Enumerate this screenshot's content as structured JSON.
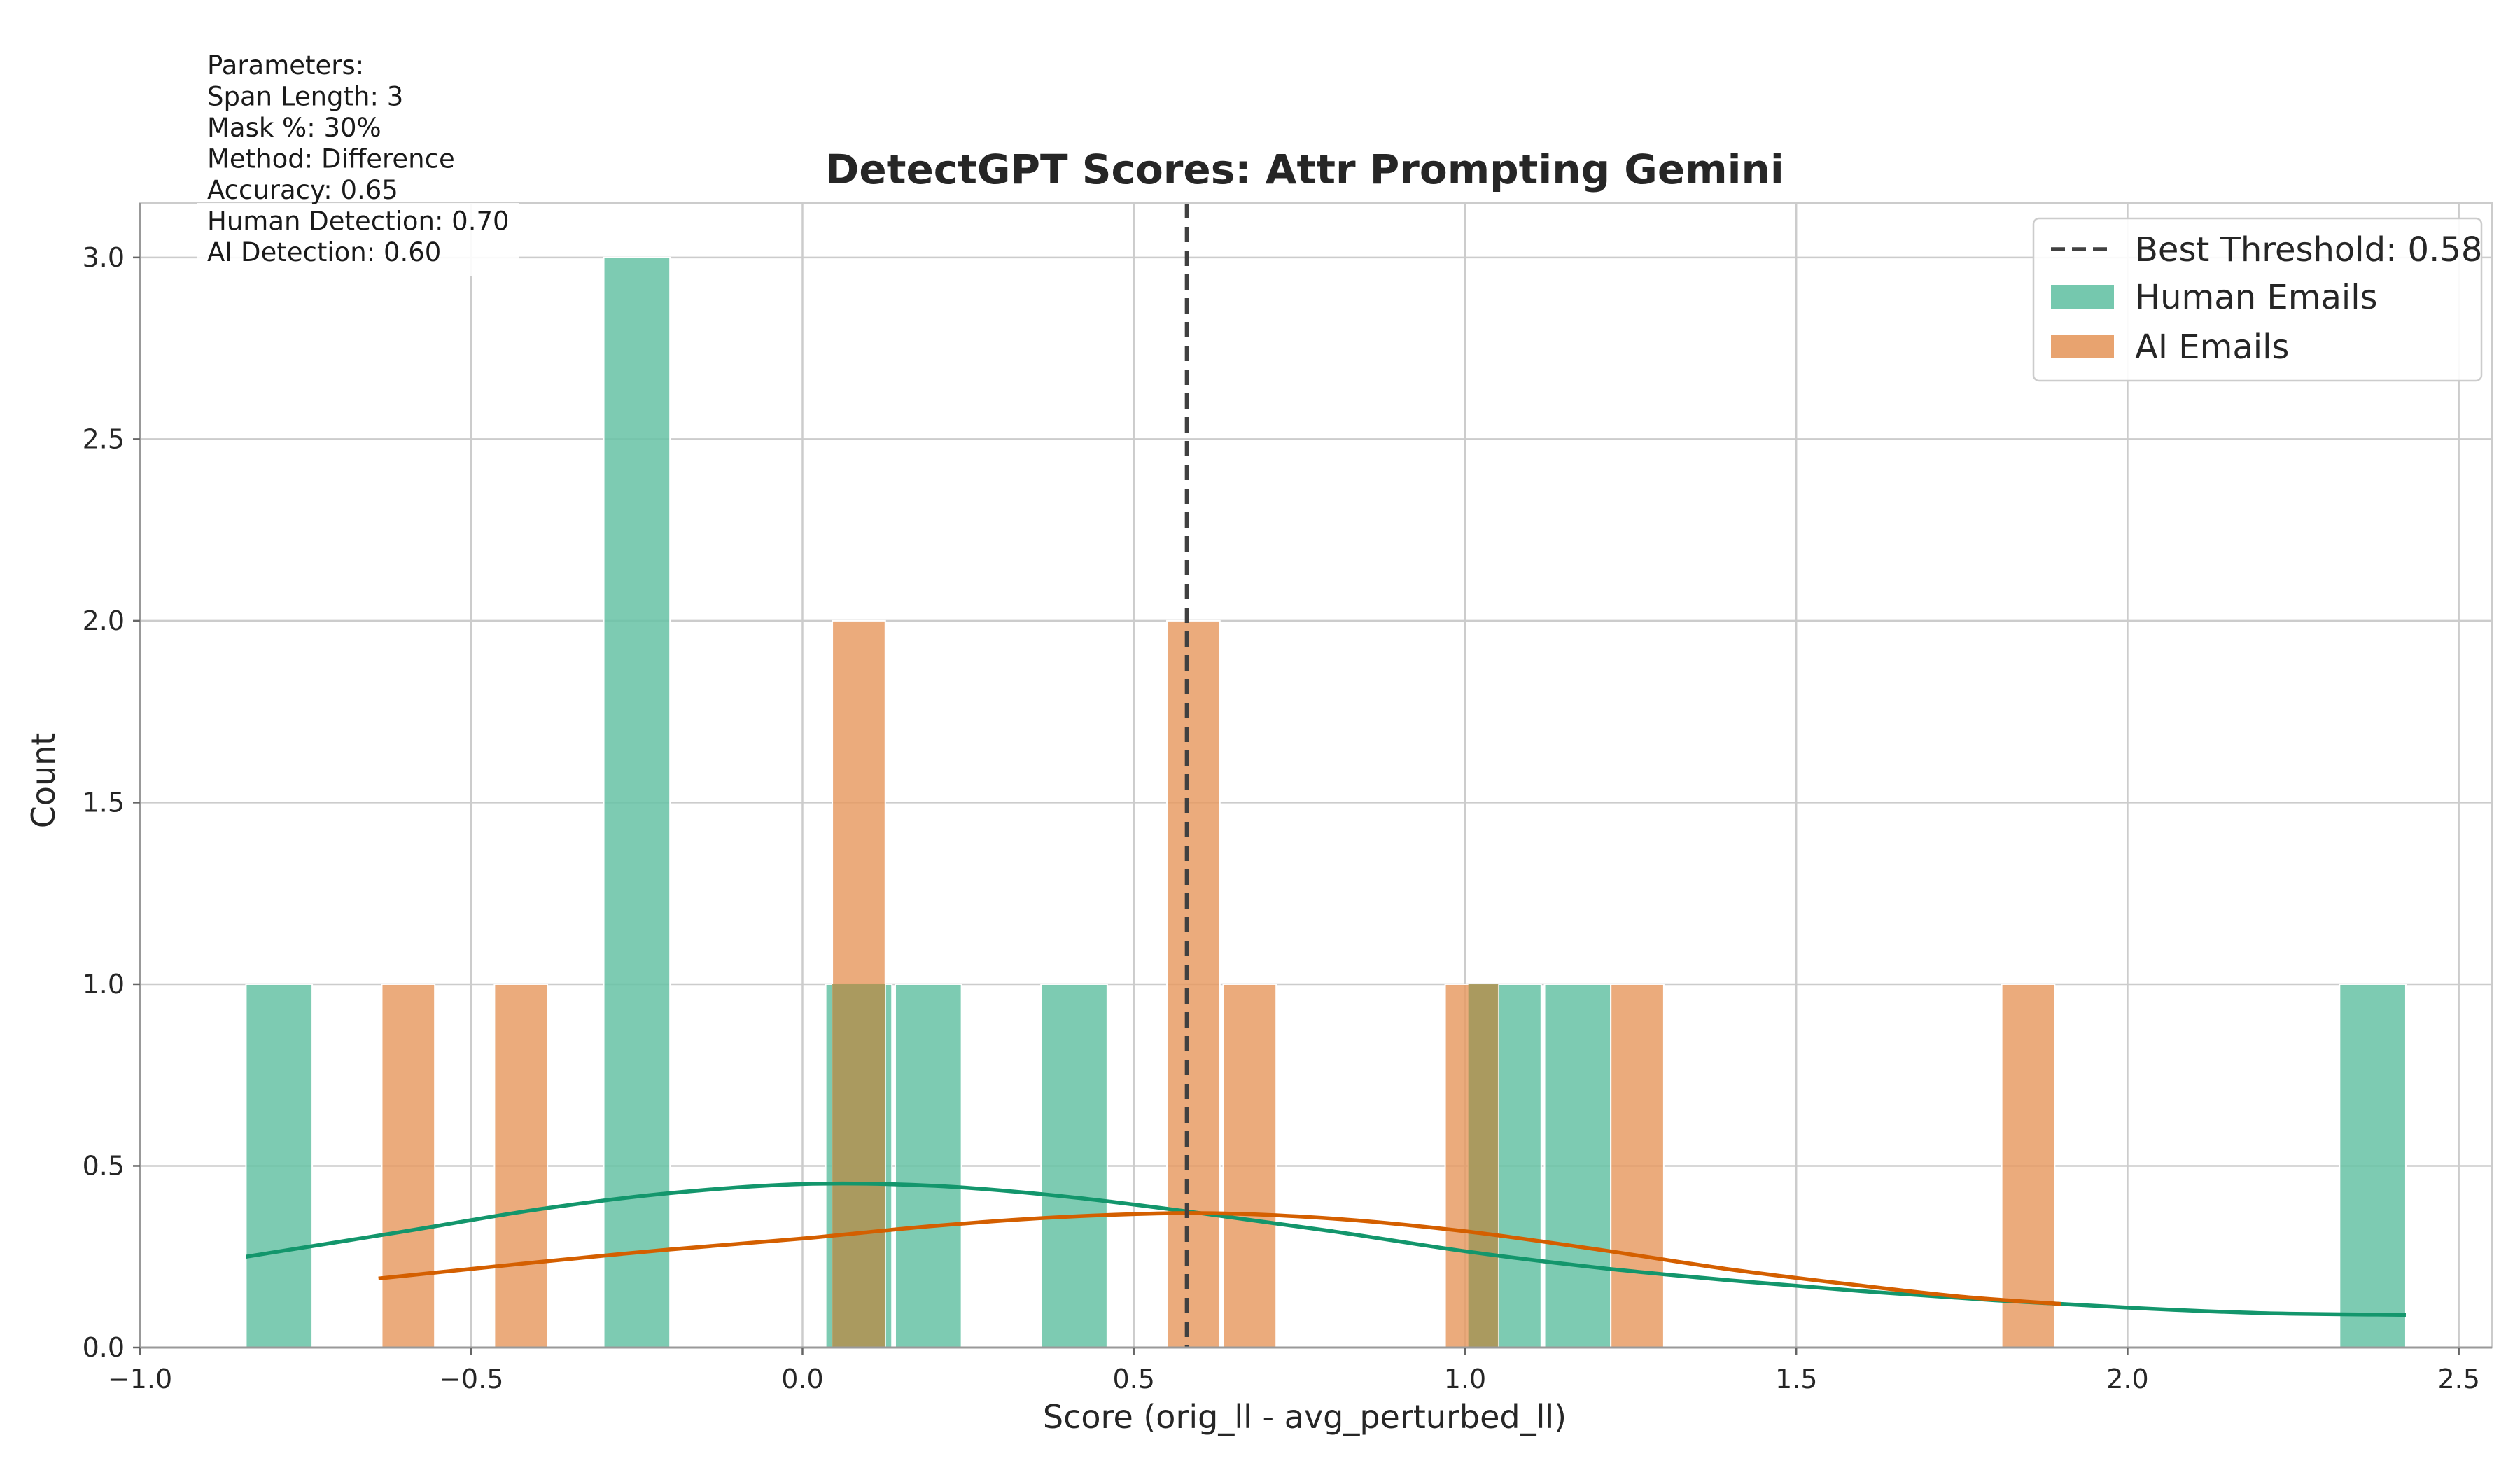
{
  "chart_data": {
    "type": "bar",
    "title": "DetectGPT Scores: Attr Prompting Gemini",
    "xlabel": "Score (orig_ll - avg_perturbed_ll)",
    "ylabel": "Count",
    "xlim": [
      -1.0,
      2.55
    ],
    "ylim": [
      0,
      3.15
    ],
    "xticks": [
      -1.0,
      -0.5,
      0.0,
      0.5,
      1.0,
      1.5,
      2.0,
      2.5
    ],
    "xtick_labels": [
      "−1.0",
      "−0.5",
      "0.0",
      "0.5",
      "1.0",
      "1.5",
      "2.0",
      "2.5"
    ],
    "yticks": [
      0.0,
      0.5,
      1.0,
      1.5,
      2.0,
      2.5,
      3.0
    ],
    "ytick_labels": [
      "0.0",
      "0.5",
      "1.0",
      "1.5",
      "2.0",
      "2.5",
      "3.0"
    ],
    "grid": true,
    "legend_position": "top-right",
    "threshold": {
      "value": 0.58,
      "label": "Best Threshold: 0.58",
      "color": "#404040",
      "style": "dashed"
    },
    "series": [
      {
        "name": "Human Emails",
        "color": "#66c2a5",
        "kde_color": "#13966c",
        "bins": [
          {
            "x0": -0.84,
            "x1": -0.74,
            "count": 1
          },
          {
            "x0": -0.3,
            "x1": -0.2,
            "count": 3
          },
          {
            "x0": 0.035,
            "x1": 0.135,
            "count": 1
          },
          {
            "x0": 0.14,
            "x1": 0.24,
            "count": 1
          },
          {
            "x0": 0.36,
            "x1": 0.46,
            "count": 1
          },
          {
            "x0": 1.005,
            "x1": 1.05,
            "count": 1
          },
          {
            "x0": 1.05,
            "x1": 1.115,
            "count": 1
          },
          {
            "x0": 1.12,
            "x1": 1.22,
            "count": 1
          },
          {
            "x0": 2.32,
            "x1": 2.42,
            "count": 1
          }
        ],
        "kde": {
          "x": [
            -0.84,
            -0.6,
            -0.4,
            -0.2,
            0.0,
            0.2,
            0.4,
            0.6,
            0.8,
            1.0,
            1.2,
            1.4,
            1.6,
            1.8,
            2.0,
            2.2,
            2.42
          ],
          "y": [
            0.25,
            0.32,
            0.38,
            0.425,
            0.45,
            0.445,
            0.415,
            0.37,
            0.32,
            0.265,
            0.22,
            0.185,
            0.155,
            0.13,
            0.11,
            0.095,
            0.09
          ]
        }
      },
      {
        "name": "AI Emails",
        "color": "#e6995f",
        "kde_color": "#d45f00",
        "bins": [
          {
            "x0": -0.635,
            "x1": -0.555,
            "count": 1
          },
          {
            "x0": -0.465,
            "x1": -0.385,
            "count": 1
          },
          {
            "x0": 0.045,
            "x1": 0.125,
            "count": 2
          },
          {
            "x0": 0.55,
            "x1": 0.63,
            "count": 2
          },
          {
            "x0": 0.635,
            "x1": 0.715,
            "count": 1
          },
          {
            "x0": 0.97,
            "x1": 1.05,
            "count": 1
          },
          {
            "x0": 1.22,
            "x1": 1.3,
            "count": 1
          },
          {
            "x0": 1.81,
            "x1": 1.89,
            "count": 1
          }
        ],
        "kde": {
          "x": [
            -0.64,
            -0.4,
            -0.2,
            0.0,
            0.2,
            0.4,
            0.6,
            0.8,
            1.0,
            1.2,
            1.4,
            1.6,
            1.75,
            1.9
          ],
          "y": [
            0.19,
            0.235,
            0.27,
            0.3,
            0.335,
            0.36,
            0.37,
            0.355,
            0.32,
            0.27,
            0.215,
            0.17,
            0.14,
            0.12
          ]
        }
      }
    ],
    "overlap_color": "#a89a5e"
  },
  "parameters": {
    "lines": [
      "Parameters:",
      "Span Length: 3",
      "Mask %: 30%",
      "Method: Difference",
      "Accuracy: 0.65",
      "Human Detection: 0.70",
      "AI Detection: 0.60"
    ]
  }
}
